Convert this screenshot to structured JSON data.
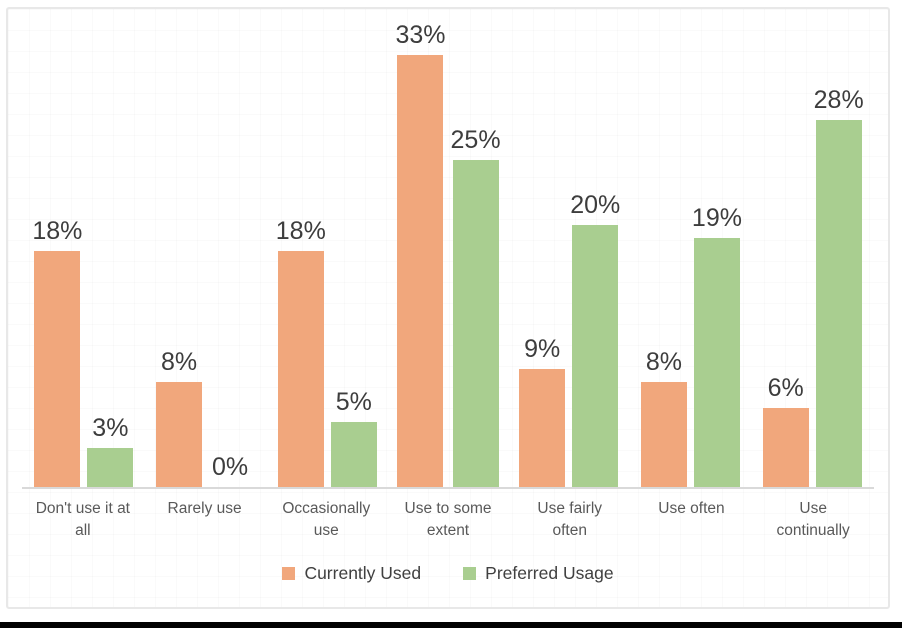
{
  "chart_data": {
    "type": "bar",
    "title": "",
    "xlabel": "",
    "ylabel": "",
    "value_suffix": "%",
    "ylim": [
      0,
      35
    ],
    "grid": "faint",
    "legend_position": "bottom",
    "data_labels": true,
    "categories": [
      "Don't use it at all",
      "Rarely use",
      "Occasionally use",
      "Use to some extent",
      "Use fairly often",
      "Use often",
      "Use continually"
    ],
    "series": [
      {
        "name": "Currently Used",
        "color": "#f1a77c",
        "values": [
          18,
          8,
          18,
          33,
          9,
          8,
          6
        ]
      },
      {
        "name": "Preferred Usage",
        "color": "#a9ce90",
        "values": [
          3,
          0,
          5,
          25,
          20,
          19,
          28
        ]
      }
    ]
  },
  "style": {
    "axis_line_color": "#d9d9d9",
    "frame_border_color": "#e8e8e8",
    "data_label_color": "#3d3d3d",
    "category_label_color": "#595959",
    "legend_text_color": "#404040",
    "bottom_bar_color": "#000000"
  }
}
